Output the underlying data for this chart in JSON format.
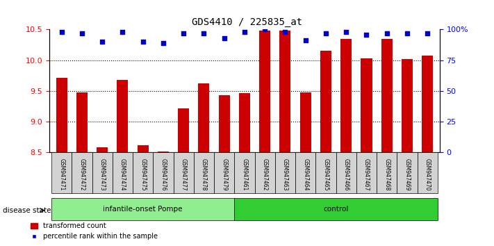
{
  "title": "GDS4410 / 225835_at",
  "samples": [
    "GSM947471",
    "GSM947472",
    "GSM947473",
    "GSM947474",
    "GSM947475",
    "GSM947476",
    "GSM947477",
    "GSM947478",
    "GSM947479",
    "GSM947461",
    "GSM947462",
    "GSM947463",
    "GSM947464",
    "GSM947465",
    "GSM947466",
    "GSM947467",
    "GSM947468",
    "GSM947469",
    "GSM947470"
  ],
  "bar_values": [
    9.72,
    9.48,
    8.58,
    9.68,
    8.62,
    8.52,
    9.22,
    9.62,
    9.43,
    9.47,
    10.48,
    10.48,
    9.48,
    10.15,
    10.35,
    10.03,
    10.35,
    10.02,
    10.08
  ],
  "percentile_values": [
    98,
    97,
    90,
    98,
    90,
    89,
    97,
    97,
    93,
    98,
    100,
    98,
    91,
    97,
    98,
    96,
    97,
    97,
    97
  ],
  "groups": [
    {
      "label": "infantile-onset Pompe",
      "start": 0,
      "end": 9,
      "color": "#90EE90"
    },
    {
      "label": "control",
      "start": 9,
      "end": 19,
      "color": "#32CD32"
    }
  ],
  "group_label": "disease state",
  "ylim_left": [
    8.5,
    10.5
  ],
  "ylim_right": [
    0,
    100
  ],
  "yticks_left": [
    8.5,
    9.0,
    9.5,
    10.0,
    10.5
  ],
  "yticks_right": [
    0,
    25,
    50,
    75,
    100
  ],
  "ytick_right_labels": [
    "0",
    "25",
    "50",
    "75",
    "100%"
  ],
  "grid_values": [
    9.0,
    9.5,
    10.0
  ],
  "bar_color": "#CC0000",
  "dot_color": "#0000CC",
  "legend_bar_label": "transformed count",
  "legend_dot_label": "percentile rank within the sample"
}
